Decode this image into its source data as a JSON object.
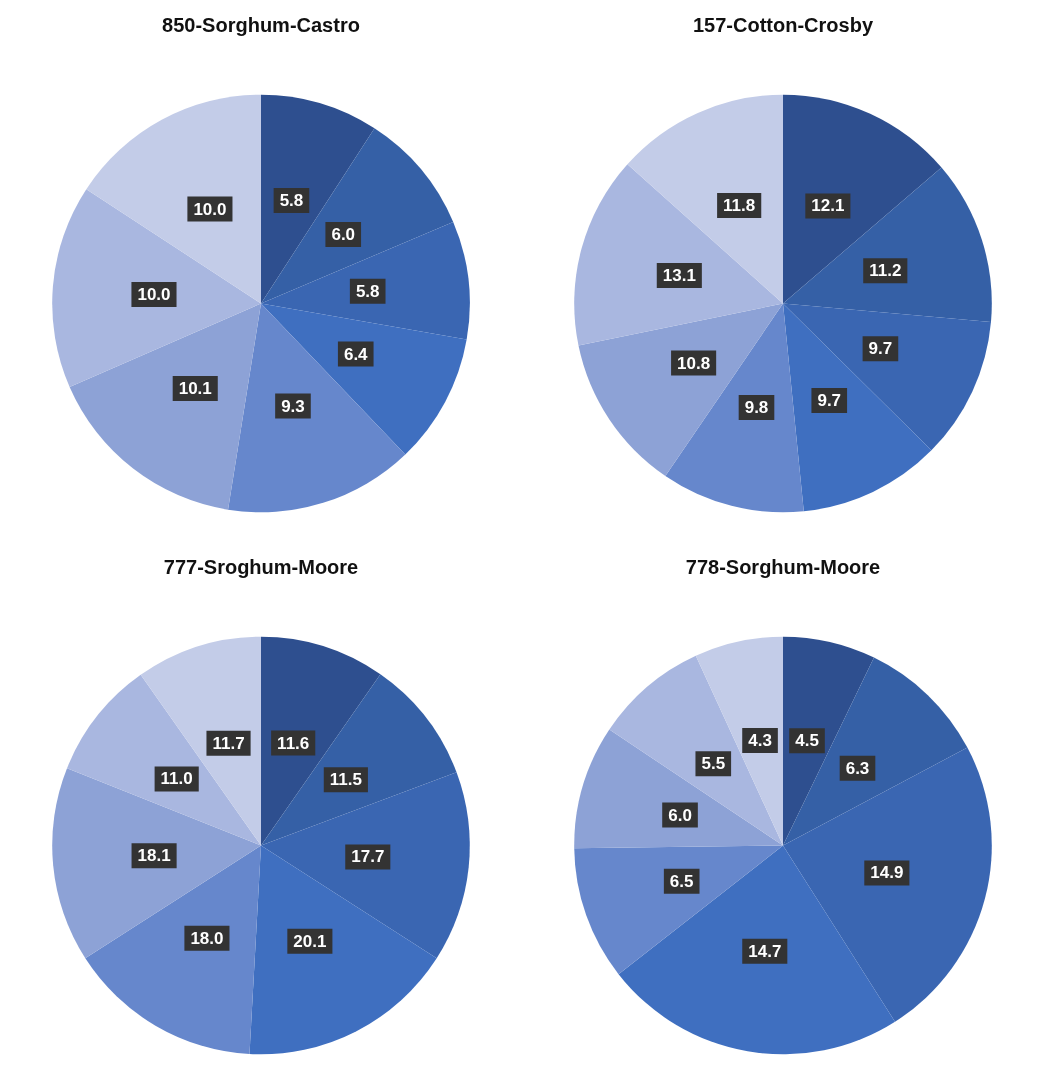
{
  "chart_data": [
    {
      "type": "pie",
      "title": "850-Sorghum-Castro",
      "categories": [
        null,
        null,
        null,
        null,
        null,
        null,
        null,
        null
      ],
      "values": [
        5.8,
        6.0,
        5.8,
        6.4,
        9.3,
        10.1,
        10.0,
        10.0
      ],
      "value_labels": [
        "5.8",
        "6.0",
        "5.8",
        "6.4",
        "9.3",
        "10.1",
        "10.0",
        "10.0"
      ],
      "colors": [
        "#2e4f8f",
        "#3560a6",
        "#3a66b2",
        "#3f6fc0",
        "#6687cc",
        "#8da2d6",
        "#a9b7e0",
        "#c3cce8"
      ]
    },
    {
      "type": "pie",
      "title": "157-Cotton-Crosby",
      "categories": [
        null,
        null,
        null,
        null,
        null,
        null,
        null,
        null
      ],
      "values": [
        12.1,
        11.2,
        9.7,
        9.7,
        9.8,
        10.8,
        13.1,
        11.8
      ],
      "value_labels": [
        "12.1",
        "11.2",
        "9.7",
        "9.7",
        "9.8",
        "10.8",
        "13.1",
        "11.8"
      ],
      "colors": [
        "#2e4f8f",
        "#3560a6",
        "#3a66b2",
        "#3f6fc0",
        "#6687cc",
        "#8da2d6",
        "#a9b7e0",
        "#c3cce8"
      ]
    },
    {
      "type": "pie",
      "title": "777-Sroghum-Moore",
      "categories": [
        null,
        null,
        null,
        null,
        null,
        null,
        null,
        null
      ],
      "values": [
        11.6,
        11.5,
        17.7,
        20.1,
        18.0,
        18.1,
        11.0,
        11.7
      ],
      "value_labels": [
        "11.6",
        "11.5",
        "17.7",
        "20.1",
        "18.0",
        "18.1",
        "11.0",
        "11.7"
      ],
      "colors": [
        "#2e4f8f",
        "#3560a6",
        "#3a66b2",
        "#3f6fc0",
        "#6687cc",
        "#8da2d6",
        "#a9b7e0",
        "#c3cce8"
      ]
    },
    {
      "type": "pie",
      "title": "778-Sorghum-Moore",
      "categories": [
        null,
        null,
        null,
        null,
        null,
        null,
        null,
        null
      ],
      "values": [
        4.5,
        6.3,
        14.9,
        14.7,
        6.5,
        6.0,
        5.5,
        4.3
      ],
      "value_labels": [
        "4.5",
        "6.3",
        "14.9",
        "14.7",
        "6.5",
        "6.0",
        "5.5",
        "4.3"
      ],
      "colors": [
        "#2e4f8f",
        "#3560a6",
        "#3a66b2",
        "#3f6fc0",
        "#6687cc",
        "#8da2d6",
        "#a9b7e0",
        "#c3cce8"
      ]
    }
  ]
}
